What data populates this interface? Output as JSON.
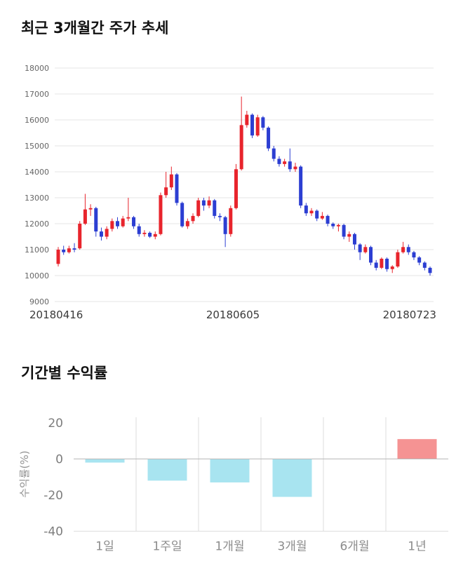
{
  "chart_data": [
    {
      "type": "candlestick",
      "title": "최근 3개월간 주가 추세",
      "x_tick_labels": [
        "20180416",
        "20180605",
        "20180723"
      ],
      "y_tick_labels": [
        18000,
        17000,
        16000,
        15000,
        14000,
        13000,
        12000,
        11000,
        10000,
        9000
      ],
      "ylim": [
        9000,
        18000
      ],
      "grid": "horizontal",
      "legend": "none",
      "up_color": "#e8242c",
      "down_color": "#2c3ed2",
      "ohlc_format": [
        "open",
        "high",
        "low",
        "close"
      ],
      "ohlc": [
        [
          10450,
          11100,
          10350,
          11000
        ],
        [
          11000,
          11150,
          10800,
          10900
        ],
        [
          10900,
          11150,
          10850,
          11050
        ],
        [
          11050,
          11250,
          10900,
          11000
        ],
        [
          11050,
          12100,
          11000,
          12000
        ],
        [
          12000,
          13150,
          11950,
          12550
        ],
        [
          12550,
          12750,
          12300,
          12600
        ],
        [
          12600,
          12650,
          11500,
          11700
        ],
        [
          11700,
          11850,
          11350,
          11500
        ],
        [
          11500,
          11900,
          11400,
          11800
        ],
        [
          11800,
          12200,
          11700,
          12100
        ],
        [
          12100,
          12250,
          11800,
          11900
        ],
        [
          11900,
          12300,
          11850,
          12200
        ],
        [
          12200,
          13000,
          12100,
          12250
        ],
        [
          12250,
          12300,
          11800,
          11900
        ],
        [
          11900,
          12000,
          11500,
          11600
        ],
        [
          11600,
          11750,
          11500,
          11650
        ],
        [
          11650,
          11700,
          11450,
          11500
        ],
        [
          11500,
          11700,
          11400,
          11600
        ],
        [
          11600,
          13200,
          11550,
          13100
        ],
        [
          13100,
          14000,
          13000,
          13400
        ],
        [
          13400,
          14200,
          13300,
          13900
        ],
        [
          13900,
          13950,
          12700,
          12800
        ],
        [
          12800,
          12850,
          11850,
          11900
        ],
        [
          11900,
          12200,
          11800,
          12100
        ],
        [
          12100,
          12400,
          12000,
          12300
        ],
        [
          12300,
          13000,
          12250,
          12900
        ],
        [
          12900,
          13000,
          12500,
          12700
        ],
        [
          12700,
          13050,
          12600,
          12900
        ],
        [
          12900,
          12950,
          12200,
          12300
        ],
        [
          12300,
          12400,
          12100,
          12250
        ],
        [
          12250,
          12300,
          11100,
          11600
        ],
        [
          11600,
          12700,
          11500,
          12600
        ],
        [
          12600,
          14300,
          12550,
          14100
        ],
        [
          14100,
          16900,
          14050,
          15800
        ],
        [
          15800,
          16350,
          15700,
          16200
        ],
        [
          16200,
          16250,
          15300,
          15400
        ],
        [
          15400,
          16200,
          15350,
          16100
        ],
        [
          16100,
          16150,
          15600,
          15700
        ],
        [
          15700,
          15750,
          14800,
          14900
        ],
        [
          14900,
          15000,
          14400,
          14500
        ],
        [
          14500,
          14600,
          14200,
          14300
        ],
        [
          14300,
          14500,
          14200,
          14400
        ],
        [
          14400,
          14900,
          14000,
          14100
        ],
        [
          14100,
          14350,
          14000,
          14200
        ],
        [
          14200,
          14250,
          12600,
          12700
        ],
        [
          12700,
          12800,
          12300,
          12400
        ],
        [
          12400,
          12600,
          12300,
          12500
        ],
        [
          12500,
          12550,
          12100,
          12200
        ],
        [
          12200,
          12450,
          12150,
          12300
        ],
        [
          12300,
          12350,
          11900,
          12000
        ],
        [
          12000,
          12050,
          11800,
          11900
        ],
        [
          11900,
          12000,
          11700,
          11950
        ],
        [
          11950,
          12000,
          11400,
          11500
        ],
        [
          11500,
          11700,
          11300,
          11600
        ],
        [
          11600,
          11650,
          11000,
          11200
        ],
        [
          11200,
          11250,
          10600,
          10900
        ],
        [
          10900,
          11200,
          10850,
          11100
        ],
        [
          11100,
          11150,
          10400,
          10500
        ],
        [
          10500,
          10600,
          10200,
          10300
        ],
        [
          10300,
          10700,
          10250,
          10650
        ],
        [
          10650,
          10700,
          10150,
          10250
        ],
        [
          10250,
          10400,
          10100,
          10350
        ],
        [
          10350,
          11000,
          10300,
          10900
        ],
        [
          10900,
          11300,
          10850,
          11100
        ],
        [
          11100,
          11200,
          10800,
          10900
        ],
        [
          10900,
          10950,
          10600,
          10700
        ],
        [
          10700,
          10750,
          10400,
          10500
        ],
        [
          10500,
          10550,
          10200,
          10300
        ],
        [
          10300,
          10350,
          10000,
          10100
        ]
      ]
    },
    {
      "type": "bar",
      "title": "기간별 수익률",
      "ylabel": "수익률(%)",
      "categories": [
        "1일",
        "1주일",
        "1개월",
        "3개월",
        "6개월",
        "1년"
      ],
      "values": [
        -2,
        -12,
        -13,
        -21,
        0,
        11
      ],
      "ylim": [
        -40,
        20
      ],
      "y_tick_labels": [
        20,
        0,
        -20,
        -40
      ],
      "grid": "category-separators",
      "legend": "none",
      "positive_color": "#f59393",
      "negative_color": "#a8e4f0"
    }
  ]
}
